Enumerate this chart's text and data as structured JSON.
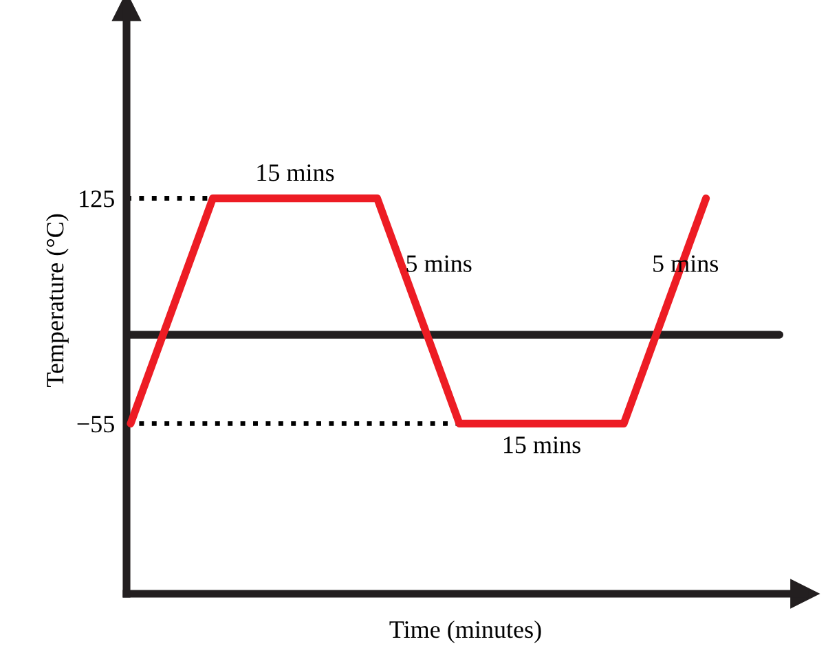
{
  "chart_data": {
    "type": "line",
    "xlabel": "Time (minutes)",
    "ylabel": "Temperature (°C)",
    "categories": [
      null,
      null,
      null,
      null,
      null,
      null,
      null,
      null
    ],
    "ylim": [
      -191,
      278
    ],
    "yticks": [
      125,
      {
        "value": -55,
        "label": "−55"
      }
    ],
    "tick_labels": "y",
    "grid": false,
    "legend": false,
    "series": [
      {
        "color": "#ed1c24",
        "values": [
          -55,
          125,
          125,
          125,
          -55,
          -55,
          -55,
          125
        ]
      }
    ],
    "ref_lines": [
      {
        "axis": "y",
        "value": 16,
        "color": "#231f20",
        "line_style": "solid"
      },
      {
        "axis": "y",
        "value": 125,
        "color": "#000000",
        "line_style": "dotted"
      },
      {
        "axis": "y",
        "value": -55,
        "color": "#000000",
        "line_style": "dotted"
      }
    ],
    "annotations": [
      "15 mins",
      "5 mins",
      "15 mins",
      "5 mins"
    ]
  }
}
